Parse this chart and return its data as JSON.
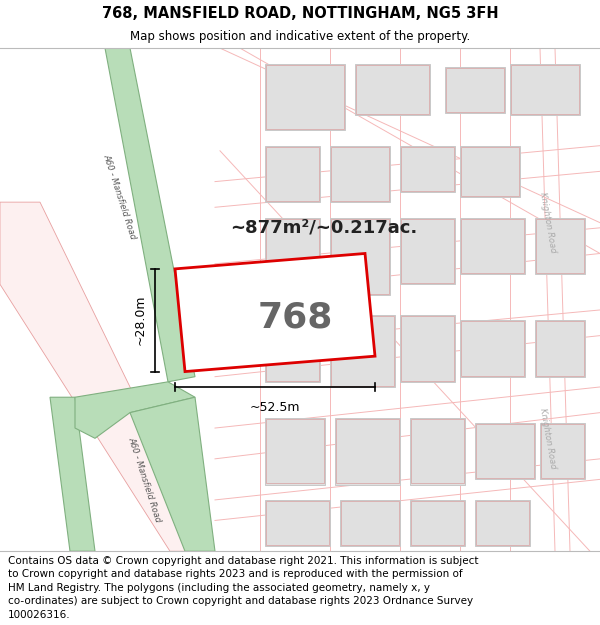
{
  "title_line1": "768, MANSFIELD ROAD, NOTTINGHAM, NG5 3FH",
  "title_line2": "Map shows position and indicative extent of the property.",
  "area_label": "~877m²/~0.217ac.",
  "property_number": "768",
  "dim_width": "~52.5m",
  "dim_height": "~28.0m",
  "footer_text_lines": [
    "Contains OS data © Crown copyright and database right 2021. This information is subject",
    "to Crown copyright and database rights 2023 and is reproduced with the permission of",
    "HM Land Registry. The polygons (including the associated geometry, namely x, y",
    "co-ordinates) are subject to Crown copyright and database rights 2023 Ordnance Survey",
    "100026316."
  ],
  "title_fontsize": 10.5,
  "subtitle_fontsize": 8.5,
  "footer_fontsize": 7.5,
  "map_bg": "#ffffff",
  "road_pink": "#f5b8b8",
  "road_green_fill": "#b8ddb8",
  "road_green_edge": "#80b080",
  "road_pink_fill": "#fce8e8",
  "road_pink_edge": "#e8a0a0",
  "block_fill": "#e0e0e0",
  "block_edge": "#c8c8c8",
  "block_inner_edge": "#d8a0a0",
  "property_edge": "#dd0000",
  "property_fill": "#ffffff",
  "dim_color": "#000000",
  "label_color": "#333333",
  "road_label_color": "#555555"
}
